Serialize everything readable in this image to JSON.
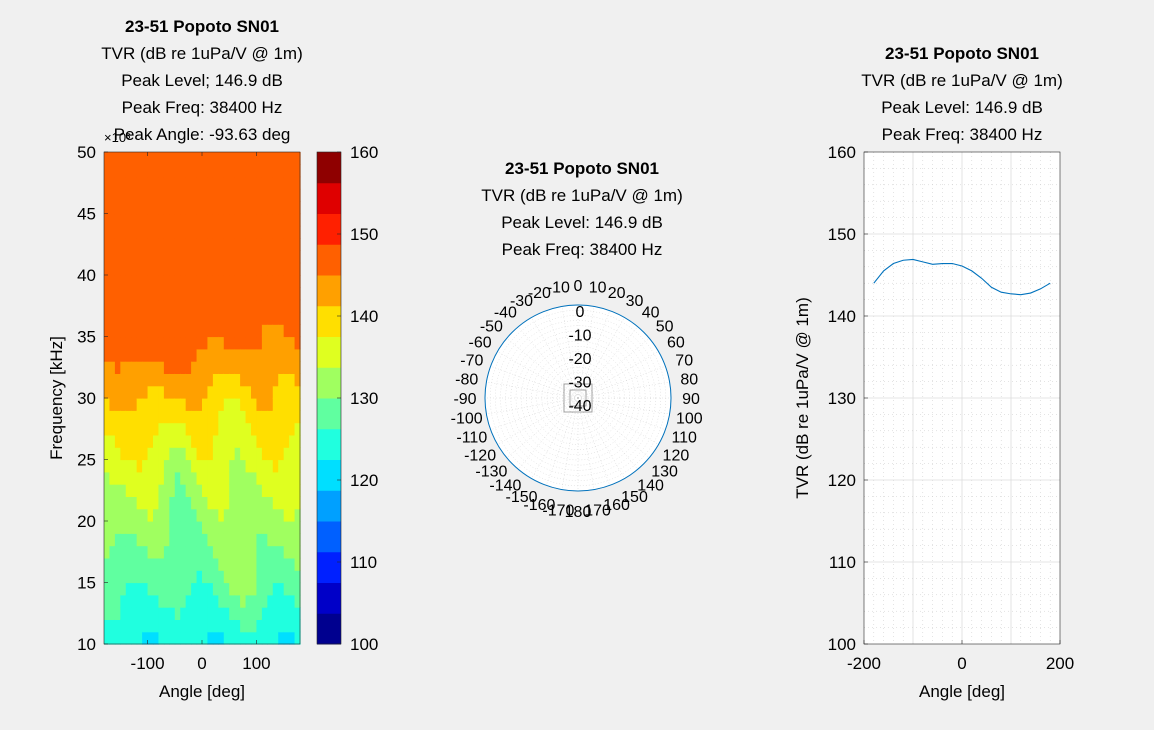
{
  "chart_data": [
    {
      "type": "heatmap",
      "title": "23-51 Popoto SN01",
      "subtitle_lines": [
        "TVR (dB re 1uPa/V @ 1m)",
        "Peak Level; 146.9 dB",
        "Peak Freq: 38400 Hz",
        "Peak Angle: -93.63 deg"
      ],
      "xlabel": "Angle [deg]",
      "ylabel": "Frequency [kHz]",
      "y_exponent_label": "×10³",
      "xlim": [
        -180,
        180
      ],
      "ylim": [
        10,
        50
      ],
      "xticks": [
        -100,
        0,
        100
      ],
      "yticks": [
        10,
        15,
        20,
        25,
        30,
        35,
        40,
        45,
        50
      ],
      "colorbar": {
        "clim": [
          100,
          160
        ],
        "ticks": [
          100,
          110,
          120,
          130,
          140,
          150,
          160
        ]
      },
      "colors": [
        "#00008f",
        "#0000c8",
        "#0020ff",
        "#0060ff",
        "#00a0ff",
        "#00dfff",
        "#20ffdf",
        "#60ffa0",
        "#a0ff60",
        "#dfff20",
        "#ffdf00",
        "#ffa000",
        "#ff6000",
        "#ff2000",
        "#df0000",
        "#8f0000"
      ]
    },
    {
      "type": "polar",
      "title": "23-51 Popoto SN01",
      "subtitle_lines": [
        "TVR (dB re 1uPa/V @ 1m)",
        "Peak Level: 146.9 dB",
        "Peak Freq: 38400 Hz"
      ],
      "r_ticks": [
        0,
        -10,
        -20,
        -30,
        -40
      ],
      "theta_labels": [
        "0",
        "10",
        "20",
        "30",
        "40",
        "50",
        "60",
        "70",
        "80",
        "90",
        "100",
        "110",
        "120",
        "130",
        "140",
        "150",
        "160",
        "170",
        "180",
        "-170",
        "-160",
        "-150",
        "-140",
        "-130",
        "-120",
        "-110",
        "-100",
        "-90",
        "-80",
        "-70",
        "-60",
        "-50",
        "-40",
        "-30",
        "-20",
        "-10"
      ],
      "series_color": "#0072bd"
    },
    {
      "type": "line",
      "title": "23-51 Popoto SN01",
      "subtitle_lines": [
        "TVR (dB re 1uPa/V @ 1m)",
        "Peak Level: 146.9 dB",
        "Peak Freq: 38400 Hz"
      ],
      "xlabel": "Angle [deg]",
      "ylabel": "TVR (dB re 1uPa/V @ 1m)",
      "xlim": [
        -200,
        200
      ],
      "ylim": [
        100,
        160
      ],
      "xticks": [
        -200,
        0,
        200
      ],
      "yticks": [
        100,
        110,
        120,
        130,
        140,
        150,
        160
      ],
      "series": [
        {
          "color": "#0072bd",
          "x": [
            -180,
            -160,
            -140,
            -120,
            -100,
            -80,
            -60,
            -40,
            -20,
            0,
            20,
            40,
            60,
            80,
            100,
            120,
            140,
            160,
            180
          ],
          "y": [
            144.0,
            145.5,
            146.4,
            146.8,
            146.9,
            146.6,
            146.3,
            146.4,
            146.4,
            146.1,
            145.5,
            144.6,
            143.5,
            142.9,
            142.7,
            142.6,
            142.8,
            143.3,
            144.0
          ]
        }
      ]
    }
  ]
}
